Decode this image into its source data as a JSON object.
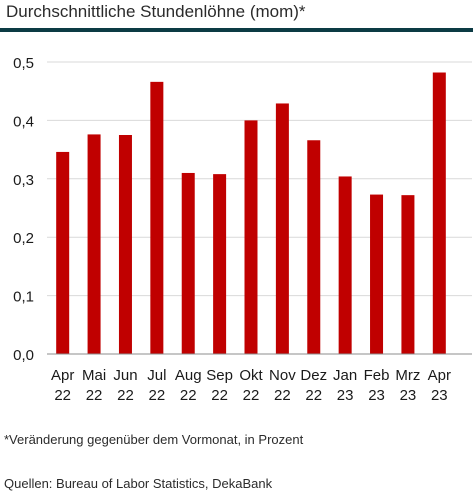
{
  "chart_data": {
    "type": "bar",
    "title": "Durchschnittliche Stundenlöhne (mom)*",
    "categories": [
      [
        "Apr",
        "22"
      ],
      [
        "Mai",
        "22"
      ],
      [
        "Jun",
        "22"
      ],
      [
        "Jul",
        "22"
      ],
      [
        "Aug",
        "22"
      ],
      [
        "Sep",
        "22"
      ],
      [
        "Okt",
        "22"
      ],
      [
        "Nov",
        "22"
      ],
      [
        "Dez",
        "22"
      ],
      [
        "Jan",
        "23"
      ],
      [
        "Feb",
        "23"
      ],
      [
        "Mrz",
        "23"
      ],
      [
        "Apr",
        "23"
      ]
    ],
    "values": [
      0.346,
      0.376,
      0.375,
      0.466,
      0.31,
      0.308,
      0.4,
      0.429,
      0.366,
      0.304,
      0.273,
      0.272,
      0.482
    ],
    "ylim": [
      0,
      0.5
    ],
    "yticks": [
      "0,0",
      "0,1",
      "0,2",
      "0,3",
      "0,4",
      "0,5"
    ],
    "grid": true,
    "colors": {
      "bar": "#c00000",
      "grid": "#d9d9d9",
      "title_rule": "#0c3b44"
    }
  },
  "footnote": "*Veränderung gegenüber dem Vormonat, in Prozent",
  "source": "Quellen: Bureau of Labor Statistics, DekaBank"
}
